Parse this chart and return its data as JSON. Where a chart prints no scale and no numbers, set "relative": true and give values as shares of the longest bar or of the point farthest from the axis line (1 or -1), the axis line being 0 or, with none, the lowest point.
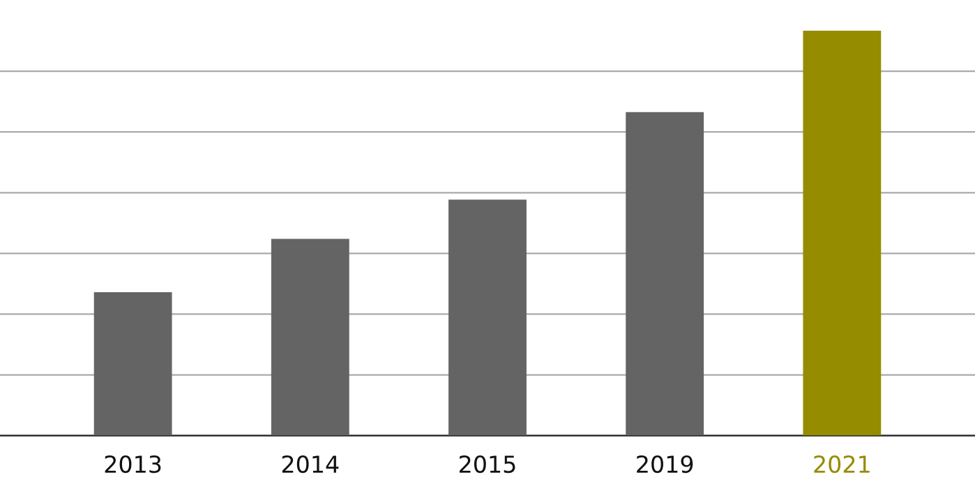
{
  "chart_data": {
    "type": "bar",
    "relative": true,
    "grid": "y",
    "categories": [
      "2013",
      "2014",
      "2015",
      "2019",
      "2021"
    ],
    "values": [
      0.354,
      0.486,
      0.583,
      0.799,
      1
    ],
    "colors": [
      "#646464",
      "#646464",
      "#646464",
      "#646464",
      "#968c00"
    ]
  }
}
